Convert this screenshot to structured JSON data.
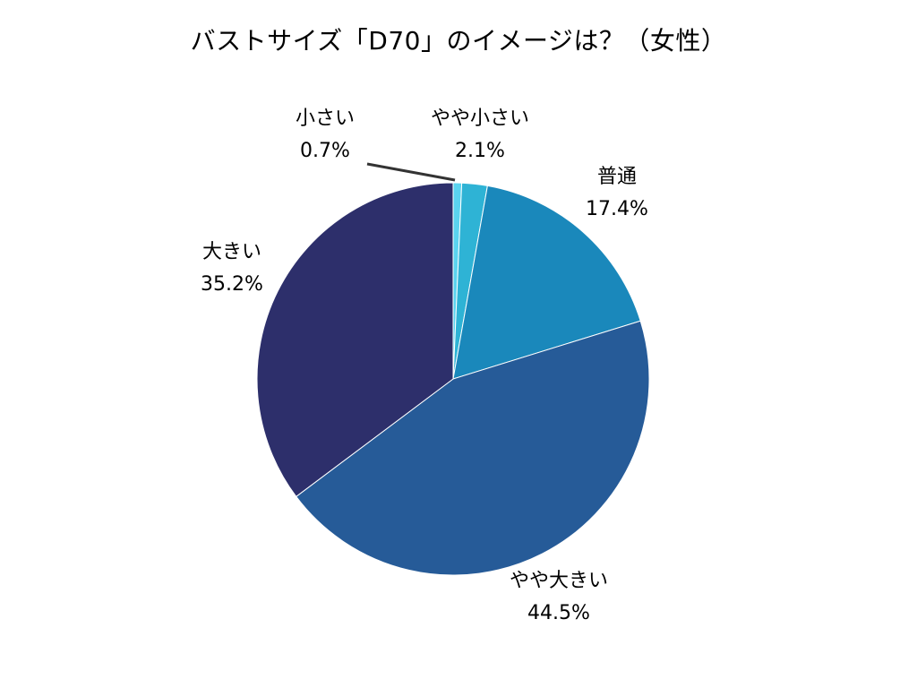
{
  "chart_data": {
    "type": "pie",
    "title": "バストサイズ「D70」のイメージは？（女性）",
    "start": "12 o'clock",
    "direction": "clockwise",
    "slices": [
      {
        "label": "小さい",
        "value": 0.7,
        "value_label": "0.7%",
        "color": "#5ad3ef"
      },
      {
        "label": "やや小さい",
        "value": 2.1,
        "value_label": "2.1%",
        "color": "#2eb3d5"
      },
      {
        "label": "普通",
        "value": 17.4,
        "value_label": "17.4%",
        "color": "#1a88bb"
      },
      {
        "label": "やや大きい",
        "value": 44.5,
        "value_label": "44.5%",
        "color": "#265b98"
      },
      {
        "label": "大きい",
        "value": 35.2,
        "value_label": "35.2%",
        "color": "#2d2f6b"
      }
    ],
    "leader_line_color": "#333333"
  }
}
